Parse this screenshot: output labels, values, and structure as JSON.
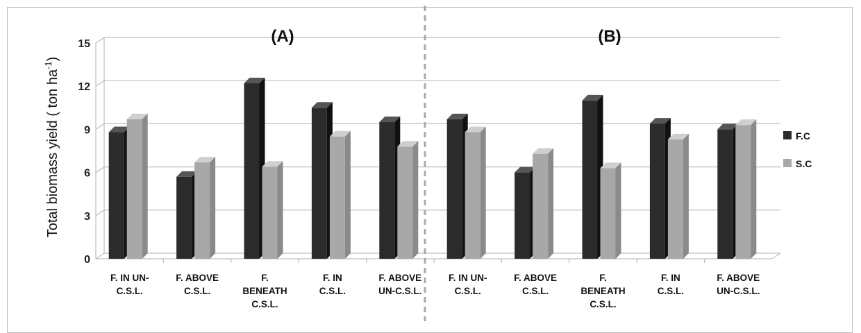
{
  "chart_data": {
    "type": "bar",
    "ylabel": "Total biomass yield ( ton ha",
    "ylabel_sup": "-1",
    "ylabel_close": ")",
    "ylim": [
      0,
      15
    ],
    "yticks": [
      "0",
      "3",
      "6",
      "9",
      "12",
      "15"
    ],
    "grid": true,
    "legend_position": "right",
    "panels": [
      {
        "label": "(A)",
        "categories": [
          [
            "F. IN UN-",
            "C.S.L."
          ],
          [
            "F. ABOVE",
            "C.S.L."
          ],
          [
            "F.",
            "BENEATH",
            "C.S.L."
          ],
          [
            "F. IN",
            "C.S.L."
          ],
          [
            "F. ABOVE",
            "UN-C.S.L."
          ]
        ],
        "series": [
          {
            "name": "F.C",
            "values": [
              8.8,
              5.7,
              12.2,
              10.5,
              9.5
            ]
          },
          {
            "name": "S.C",
            "values": [
              9.7,
              6.7,
              6.4,
              8.5,
              7.8
            ]
          }
        ]
      },
      {
        "label": "(B)",
        "categories": [
          [
            "F. IN UN-",
            "C.S.L."
          ],
          [
            "F. ABOVE",
            "C.S.L."
          ],
          [
            "F.",
            "BENEATH",
            "C.S.L."
          ],
          [
            "F. IN",
            "C.S.L."
          ],
          [
            "F. ABOVE",
            "UN-C.S.L."
          ]
        ],
        "series": [
          {
            "name": "F.C",
            "values": [
              9.7,
              6.0,
              11.0,
              9.4,
              9.0
            ]
          },
          {
            "name": "S.C",
            "values": [
              8.8,
              7.3,
              6.3,
              8.3,
              9.3
            ]
          }
        ]
      }
    ],
    "legend": [
      {
        "name": "F.C",
        "color": "#2b2b2b"
      },
      {
        "name": "S.C",
        "color": "#a8a8a8"
      }
    ]
  }
}
